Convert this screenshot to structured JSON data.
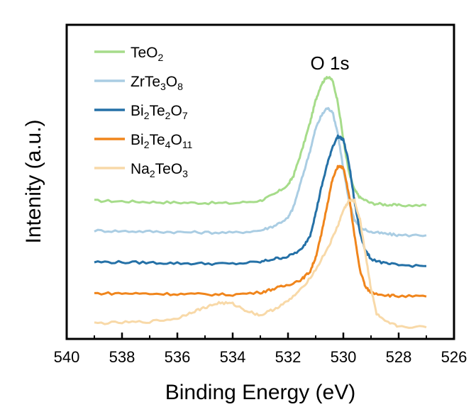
{
  "chart_data": {
    "type": "line",
    "title": "",
    "annotation": "O 1s",
    "xlabel": "Binding Energy (eV)",
    "ylabel": "Intenity (a.u.)",
    "xlim": [
      540,
      526
    ],
    "x_reversed": true,
    "xticks": [
      540,
      538,
      536,
      534,
      532,
      530,
      528,
      526
    ],
    "xtick_labels": [
      "540",
      "538",
      "536",
      "534",
      "532",
      "530",
      "528",
      "526"
    ],
    "y_units": "arbitrary (stacked, offset)",
    "ylim": [
      0,
      1
    ],
    "grid": false,
    "legend_position": "top-left",
    "series": [
      {
        "name": "TeO2",
        "legend_base": "TeO",
        "legend_sub": "2",
        "color": "#a6dc8a",
        "x": [
          539.0,
          538.0,
          537.0,
          536.0,
          535.0,
          534.0,
          533.0,
          532.5,
          532.0,
          531.8,
          531.5,
          531.2,
          531.0,
          530.8,
          530.6,
          530.4,
          530.2,
          530.0,
          529.8,
          529.6,
          529.4,
          529.0,
          528.5,
          528.0,
          527.0
        ],
        "y": [
          0.44,
          0.438,
          0.436,
          0.434,
          0.433,
          0.432,
          0.44,
          0.46,
          0.49,
          0.52,
          0.6,
          0.69,
          0.76,
          0.81,
          0.835,
          0.825,
          0.755,
          0.635,
          0.53,
          0.475,
          0.45,
          0.432,
          0.428,
          0.425,
          0.425
        ]
      },
      {
        "name": "ZrTe3O8",
        "legend_base": "ZrTe",
        "legend_sub": "3",
        "legend_mid": "O",
        "legend_sub2": "8",
        "color": "#aacde3",
        "x": [
          539.0,
          538.0,
          537.0,
          536.0,
          535.0,
          534.0,
          533.0,
          532.5,
          532.0,
          531.8,
          531.5,
          531.2,
          531.0,
          530.8,
          530.6,
          530.4,
          530.2,
          530.0,
          529.8,
          529.6,
          529.4,
          529.0,
          528.5,
          528.0,
          527.0
        ],
        "y": [
          0.345,
          0.343,
          0.342,
          0.34,
          0.339,
          0.338,
          0.345,
          0.36,
          0.385,
          0.42,
          0.51,
          0.6,
          0.67,
          0.71,
          0.735,
          0.725,
          0.655,
          0.54,
          0.44,
          0.38,
          0.355,
          0.34,
          0.335,
          0.33,
          0.33
        ]
      },
      {
        "name": "Bi2Te2O7",
        "legend_base": "Bi",
        "legend_sub": "2",
        "legend_mid": "Te",
        "legend_sub2": "2",
        "legend_mid2": "O",
        "legend_sub3": "7",
        "color": "#2571a7",
        "x": [
          539.0,
          538.0,
          537.0,
          536.0,
          535.0,
          534.0,
          533.0,
          532.5,
          532.0,
          531.5,
          531.2,
          531.0,
          530.8,
          530.6,
          530.4,
          530.2,
          530.0,
          529.8,
          529.6,
          529.4,
          529.2,
          529.0,
          528.5,
          528.0,
          527.0
        ],
        "y": [
          0.245,
          0.244,
          0.243,
          0.241,
          0.24,
          0.239,
          0.245,
          0.255,
          0.262,
          0.285,
          0.33,
          0.4,
          0.48,
          0.55,
          0.61,
          0.645,
          0.635,
          0.56,
          0.44,
          0.34,
          0.28,
          0.255,
          0.24,
          0.235,
          0.232
        ]
      },
      {
        "name": "Bi2Te4O11",
        "legend_base": "Bi",
        "legend_sub": "2",
        "legend_mid": "Te",
        "legend_sub2": "4",
        "legend_mid2": "O",
        "legend_sub3": "11",
        "color": "#f0851c",
        "x": [
          539.0,
          538.0,
          537.0,
          536.0,
          535.0,
          534.0,
          533.0,
          532.5,
          532.0,
          531.5,
          531.2,
          531.0,
          530.8,
          530.6,
          530.4,
          530.2,
          530.0,
          529.8,
          529.6,
          529.4,
          529.2,
          529.0,
          528.5,
          528.0,
          527.0
        ],
        "y": [
          0.145,
          0.145,
          0.144,
          0.143,
          0.142,
          0.141,
          0.148,
          0.16,
          0.172,
          0.19,
          0.215,
          0.26,
          0.33,
          0.42,
          0.505,
          0.55,
          0.545,
          0.46,
          0.33,
          0.22,
          0.165,
          0.148,
          0.14,
          0.136,
          0.135
        ]
      },
      {
        "name": "Na2TeO3",
        "legend_base": "Na",
        "legend_sub": "2",
        "legend_mid": "TeO",
        "legend_sub2": "3",
        "color": "#f8d9a8",
        "x": [
          539.0,
          538.0,
          537.0,
          536.0,
          535.5,
          535.0,
          534.5,
          534.0,
          533.5,
          533.0,
          532.5,
          532.0,
          531.5,
          531.0,
          530.5,
          530.2,
          530.0,
          529.8,
          529.6,
          529.4,
          529.2,
          529.0,
          528.8,
          528.5,
          528.0,
          527.0
        ],
        "y": [
          0.05,
          0.052,
          0.055,
          0.065,
          0.085,
          0.1,
          0.115,
          0.112,
          0.09,
          0.075,
          0.095,
          0.12,
          0.16,
          0.22,
          0.3,
          0.36,
          0.41,
          0.44,
          0.44,
          0.38,
          0.27,
          0.16,
          0.08,
          0.055,
          0.04,
          0.037
        ]
      }
    ]
  }
}
